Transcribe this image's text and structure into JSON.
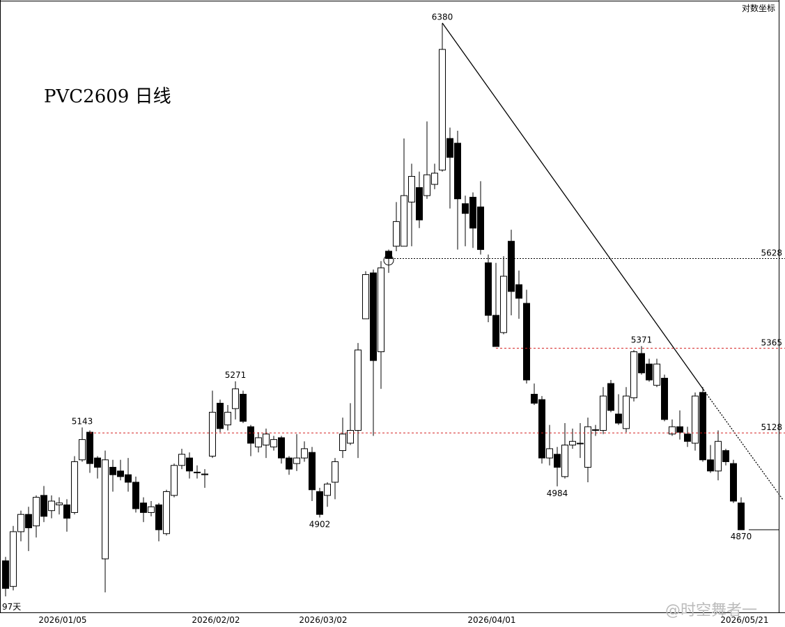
{
  "chart_data": {
    "type": "candlestick",
    "title": "PVC2609 日线",
    "scale_label": "对数坐标",
    "period_label": "97天",
    "watermark": "@时空舞者一",
    "log_scale": true,
    "up_color": "#ffffff",
    "down_color": "#000000",
    "ylim": [
      4660,
      6460
    ],
    "categories": [
      null,
      null,
      null,
      null,
      null,
      null,
      null,
      "2026/01/05",
      null,
      null,
      null,
      null,
      null,
      null,
      null,
      null,
      null,
      null,
      null,
      null,
      null,
      null,
      null,
      null,
      null,
      null,
      null,
      "2026/02/02",
      null,
      null,
      null,
      null,
      null,
      null,
      null,
      null,
      null,
      null,
      null,
      null,
      null,
      "2026/03/02",
      null,
      null,
      null,
      null,
      null,
      null,
      null,
      null,
      null,
      null,
      null,
      null,
      null,
      null,
      null,
      null,
      null,
      null,
      null,
      null,
      null,
      "2026/04/01",
      null,
      null,
      null,
      null,
      null,
      null,
      null,
      null,
      null,
      null,
      null,
      null,
      null,
      null,
      null,
      null,
      null,
      null,
      null,
      null,
      null,
      null,
      null,
      null,
      null,
      null,
      null,
      null,
      null,
      null,
      null,
      null,
      "2026/05/21"
    ],
    "open": [
      4790,
      4725,
      4865,
      4910,
      4880,
      4960,
      4920,
      4935,
      4935,
      4915,
      5055,
      5130,
      5060,
      4795,
      5035,
      5025,
      5015,
      4995,
      4940,
      4915,
      4935,
      4860,
      4960,
      5040,
      5060,
      5020,
      5015,
      5065,
      5210,
      5150,
      5195,
      5235,
      5145,
      5090,
      5095,
      5090,
      5115,
      5060,
      5045,
      5060,
      5075,
      4970,
      4960,
      4995,
      5080,
      5100,
      5135,
      5450,
      5585,
      5355,
      5650,
      5665,
      5665,
      5800,
      5845,
      5820,
      5855,
      5900,
      6000,
      5985,
      5795,
      5815,
      5785,
      5615,
      5460,
      5410,
      5680,
      5550,
      5495,
      5235,
      5220,
      5060,
      5070,
      5010,
      5095,
      5100,
      5035,
      5135,
      5135,
      5265,
      5180,
      5140,
      5225,
      5350,
      5320,
      5260,
      5280,
      5125,
      5145,
      5125,
      5100,
      5240,
      5055,
      5025,
      5080,
      5045,
      4940
    ],
    "high": [
      4800,
      4880,
      4920,
      4930,
      4960,
      4985,
      4960,
      4955,
      4950,
      5065,
      5143,
      5135,
      5065,
      5080,
      5055,
      5055,
      5060,
      5010,
      4955,
      4945,
      4940,
      4975,
      5045,
      5085,
      5075,
      5040,
      5030,
      5245,
      5220,
      5205,
      5271,
      5245,
      5150,
      5130,
      5140,
      5120,
      5120,
      5065,
      5125,
      5105,
      5090,
      4980,
      4995,
      5060,
      5170,
      5210,
      5380,
      5590,
      5595,
      5620,
      5655,
      5800,
      6000,
      5920,
      5895,
      6055,
      5920,
      6380,
      6035,
      6025,
      5820,
      5830,
      5865,
      5640,
      5615,
      5635,
      5715,
      5592,
      5535,
      5265,
      5230,
      5150,
      5090,
      5155,
      5140,
      5155,
      5170,
      5150,
      5255,
      5275,
      5235,
      5255,
      5360,
      5371,
      5335,
      5335,
      5290,
      5165,
      5190,
      5145,
      5240,
      5255,
      5095,
      5135,
      5085,
      5055,
      4955
    ],
    "low": [
      4700,
      4715,
      4840,
      4815,
      4850,
      4890,
      4900,
      4910,
      4865,
      4910,
      5050,
      5020,
      5005,
      4710,
      4970,
      5000,
      4970,
      4915,
      4890,
      4905,
      4840,
      4855,
      4955,
      5030,
      5005,
      5005,
      4980,
      5060,
      5130,
      5135,
      5165,
      5155,
      5065,
      5075,
      5060,
      5080,
      5045,
      5015,
      5025,
      5050,
      4945,
      4902,
      4930,
      4950,
      5060,
      5095,
      5060,
      5450,
      5120,
      5250,
      5585,
      5650,
      5665,
      5665,
      5720,
      5810,
      5840,
      5895,
      5780,
      5655,
      5665,
      5660,
      5640,
      5440,
      5370,
      5405,
      5460,
      5450,
      5265,
      5205,
      5045,
      5040,
      4984,
      5005,
      5085,
      5060,
      4995,
      5120,
      5125,
      5185,
      5150,
      5130,
      5215,
      5290,
      5270,
      5255,
      5160,
      5120,
      5110,
      5090,
      5080,
      5050,
      5020,
      5000,
      5040,
      4940,
      4870
    ],
    "close": [
      4720,
      4865,
      4910,
      4875,
      4955,
      4905,
      4945,
      4940,
      4900,
      5050,
      5110,
      5045,
      5035,
      5055,
      5015,
      5010,
      4995,
      4925,
      4915,
      4930,
      4870,
      4970,
      5040,
      5070,
      5025,
      5022,
      5017,
      5185,
      5140,
      5185,
      5250,
      5160,
      5100,
      5115,
      5125,
      5110,
      5060,
      5030,
      5060,
      5085,
      4975,
      4910,
      4990,
      5050,
      5125,
      5135,
      5360,
      5580,
      5330,
      5600,
      5628,
      5740,
      5820,
      5880,
      5745,
      5885,
      5890,
      6292,
      5940,
      5810,
      5765,
      5720,
      5655,
      5460,
      5370,
      5575,
      5530,
      5510,
      5275,
      5210,
      5060,
      5085,
      5035,
      5095,
      5105,
      5100,
      5145,
      5137,
      5230,
      5190,
      5155,
      5230,
      5355,
      5295,
      5275,
      5320,
      5165,
      5145,
      5130,
      5105,
      5230,
      5055,
      5025,
      5105,
      5050,
      4945,
      4870
    ],
    "levels": [
      {
        "value": 5628,
        "color": "#000000"
      },
      {
        "value": 5365,
        "color": "#d42020"
      },
      {
        "value": 5128,
        "color": "#d42020"
      }
    ],
    "annotations": [
      6380,
      5143,
      5271,
      4902,
      4984,
      5371,
      4870
    ]
  }
}
